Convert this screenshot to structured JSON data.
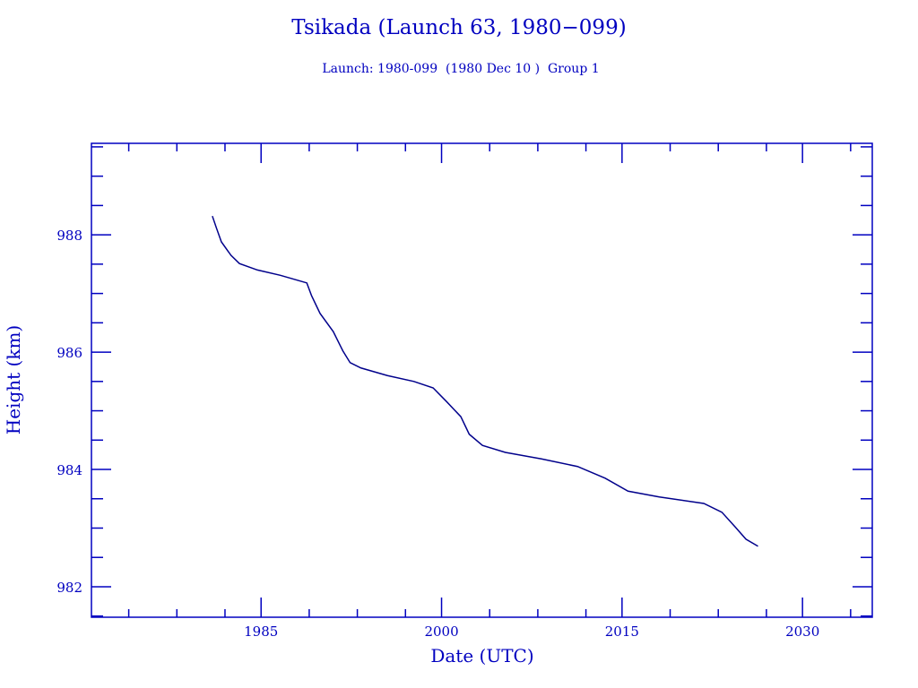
{
  "chart_data": {
    "type": "line",
    "title": "Tsikada (Launch 63, 1980−099)",
    "subtitle": "Launch: 1980-099  (1980 Dec 10 )  Group 1",
    "xlabel": "Date (UTC)",
    "ylabel": "Height (km)",
    "xlim": [
      1970.9,
      2035.8
    ],
    "ylim": [
      981.48,
      989.56
    ],
    "x_major_ticks": [
      1985,
      2000,
      2015,
      2030
    ],
    "x_tick_labels": [
      "1985",
      "2000",
      "2015",
      "2030"
    ],
    "x_minor_ticks": [
      1974,
      1978,
      1982,
      1989,
      1993,
      1997,
      2004,
      2008,
      2012,
      2019,
      2023,
      2027,
      2034
    ],
    "y_major_ticks": [
      982,
      984,
      986,
      988
    ],
    "y_tick_labels": [
      "982",
      "984",
      "986",
      "988"
    ],
    "y_minor_step": 0.5,
    "grid": false,
    "line_color": "#00008b",
    "axis_color": "#0000c0",
    "series": [
      {
        "name": "Height",
        "x": [
          1980.95,
          1981.3,
          1981.7,
          1982.5,
          1983.2,
          1984.7,
          1986.6,
          1988.8,
          1989.2,
          1989.9,
          1991.0,
          1991.8,
          1992.4,
          1993.3,
          1995.5,
          1997.7,
          1999.3,
          2000.4,
          2001.6,
          2002.3,
          2003.4,
          2005.3,
          2008.3,
          2011.3,
          2013.6,
          2015.5,
          2018.1,
          2021.8,
          2023.3,
          2024.4,
          2025.3,
          2026.3
        ],
        "y": [
          988.32,
          988.11,
          987.88,
          987.65,
          987.51,
          987.4,
          987.31,
          987.18,
          986.96,
          986.66,
          986.35,
          986.02,
          985.82,
          985.73,
          985.6,
          985.5,
          985.39,
          985.16,
          984.9,
          984.6,
          984.41,
          984.29,
          984.18,
          984.05,
          983.85,
          983.63,
          983.53,
          983.42,
          983.27,
          983.02,
          982.81,
          982.69
        ]
      }
    ]
  }
}
